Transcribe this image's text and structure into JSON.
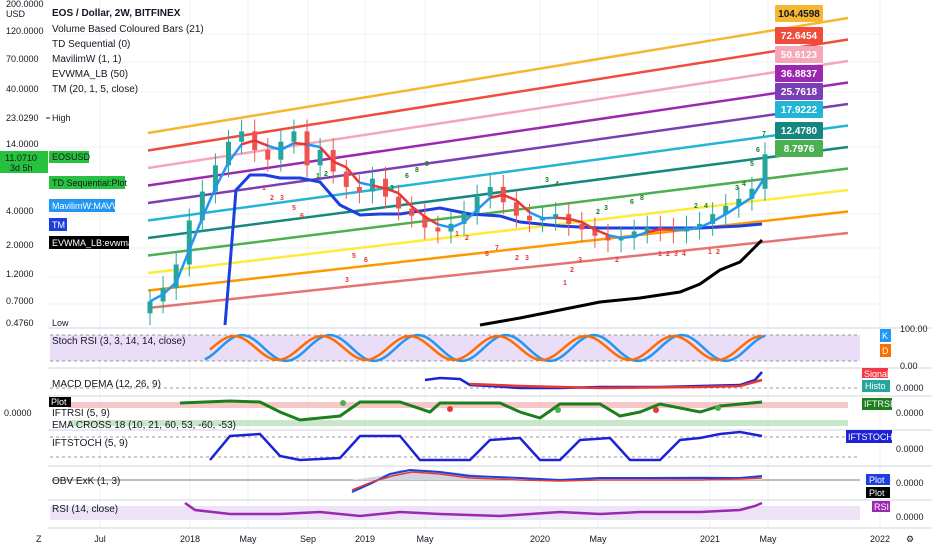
{
  "symbol_title": "EOS / Dollar, 2W, BITFINEX",
  "currency": "USD",
  "indicators": [
    "Volume Based Coloured Bars (21)",
    "TD Sequential (0)",
    "MavilimW (1, 1)",
    "EVWMA_LB (50)",
    "TM (20, 1, 5, close)"
  ],
  "left_labels": {
    "high_value": "23.0290",
    "high_text": "High",
    "eosusd": "EOSUSD",
    "price": "11.0710",
    "countdown": "3d 5h",
    "td": "TD Sequential:Plot",
    "mavw": "MavilimW:MAVW",
    "tm": "TM",
    "evwma": "EVWMA_LB:evwma",
    "low_value": "0.4760",
    "low_text": "Low"
  },
  "price_axis": [
    "200.0000",
    "120.0000",
    "70.0000",
    "40.0000",
    "14.0000",
    "4.0000",
    "2.0000",
    "1.2000",
    "0.7000"
  ],
  "right_tags": [
    {
      "label": "104.4598",
      "color": "#f5b731",
      "text": "#131722"
    },
    {
      "label": "72.6454",
      "color": "#ef4c3c",
      "text": "#ffffff"
    },
    {
      "label": "50.6123",
      "color": "#f3a7b8",
      "text": "#ffffff"
    },
    {
      "label": "36.8837",
      "color": "#9c27b0",
      "text": "#ffffff"
    },
    {
      "label": "25.7618",
      "color": "#7b3fb5",
      "text": "#ffffff"
    },
    {
      "label": "17.9222",
      "color": "#22b5d6",
      "text": "#ffffff"
    },
    {
      "label": "12.4780",
      "color": "#15877f",
      "text": "#ffffff"
    },
    {
      "label": "8.7976",
      "color": "#4caf50",
      "text": "#ffffff"
    }
  ],
  "time_axis": [
    "Jul",
    "2018",
    "May",
    "Sep",
    "2019",
    "May",
    "2020",
    "May",
    "2021",
    "May",
    "2022"
  ],
  "panels": {
    "stoch": {
      "title": "Stoch RSI (3, 3, 14, 14, close)",
      "k": "K",
      "d": "D",
      "v1": "100.00",
      "v2": "0.00"
    },
    "macd": {
      "title": "MACD DEMA (12, 26, 9)",
      "signal": "Signal",
      "histo": "Histo",
      "value": "0.0000"
    },
    "iftrsi": {
      "title": "IFTRSI (5, 9)",
      "plot": "Plot",
      "cross": "EMA CROSS 18 (10, 21, 60, 53, -60, -53)",
      "tag": "IFTRSI",
      "value": "0.0000",
      "left_value": "0.0000"
    },
    "iftstoch": {
      "title": "IFTSTOCH (5, 9)",
      "tag": "IFTSTOCH",
      "value": "0.0000"
    },
    "obv": {
      "title": "OBV ExK (1, 3)",
      "plot1": "Plot",
      "plot2": "Plot",
      "value": "0.0000"
    },
    "rsi": {
      "title": "RSI (14, close)",
      "tag": "RSI",
      "value": "0.0000"
    }
  },
  "footer": {
    "tz": "Z",
    "gear": "⚙"
  },
  "chart_data": {
    "type": "candlestick",
    "title": "EOS / Dollar, 2W, BITFINEX",
    "y_scale": "log",
    "ylim": [
      0.45,
      200
    ],
    "x_ticks": [
      "Jul",
      "2018",
      "May",
      "Sep",
      "2019",
      "May",
      "2020",
      "May",
      "2021",
      "May",
      "2022"
    ],
    "price_series_approx": [
      0.7,
      0.9,
      1.4,
      3.2,
      5.5,
      9.0,
      14,
      17,
      12,
      10,
      14,
      17,
      9,
      12,
      8,
      6,
      5.5,
      7,
      5,
      4,
      3.5,
      2.8,
      2.6,
      3.0,
      3.7,
      5,
      6,
      4.5,
      3.5,
      3.2,
      3.3,
      3.6,
      3.0,
      2.7,
      2.4,
      2.2,
      2.3,
      2.6,
      2.8,
      2.7,
      2.6,
      2.8,
      3.0,
      3.6,
      4.2,
      4.8,
      5.8,
      11.07
    ],
    "channel_levels_current": [
      104.4598,
      72.6454,
      50.6123,
      36.8837,
      25.7618,
      17.9222,
      12.478,
      8.7976
    ],
    "current_price": 11.071,
    "high": 23.029,
    "low": 0.476
  }
}
